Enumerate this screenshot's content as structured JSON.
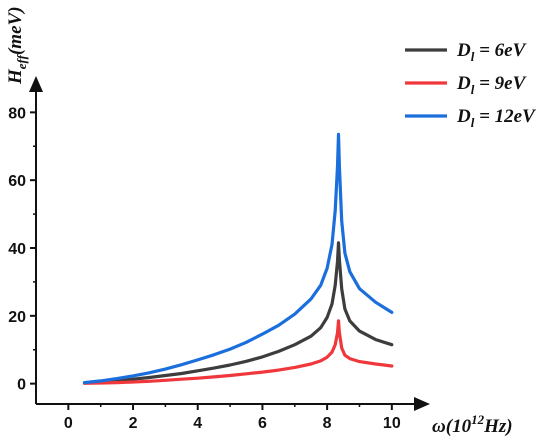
{
  "chart_data": {
    "type": "line",
    "xlabel": {
      "base": "ω(10",
      "sup": "12",
      "rest": "Hz)"
    },
    "ylabel": {
      "base": "H",
      "sub": "eff",
      "rest": "(meV)"
    },
    "xlim": [
      -1,
      10.5
    ],
    "ylim": [
      -6,
      86
    ],
    "x_ticks": [
      0,
      2,
      4,
      6,
      8,
      10
    ],
    "y_ticks": [
      0,
      20,
      40,
      60,
      80
    ],
    "legend_position": "top-right",
    "series": [
      {
        "name": {
          "base": "D",
          "sub": "l",
          "rest": " = 6eV"
        },
        "color": "#3d3d3d",
        "x": [
          0.5,
          1,
          1.5,
          2,
          2.5,
          3,
          3.5,
          4,
          4.5,
          5,
          5.5,
          6,
          6.5,
          7,
          7.5,
          7.8,
          8.0,
          8.15,
          8.25,
          8.32,
          8.35,
          8.38,
          8.45,
          8.55,
          8.7,
          9.0,
          9.5,
          10
        ],
        "y": [
          0.2,
          0.5,
          0.8,
          1.3,
          1.8,
          2.4,
          3.0,
          3.8,
          4.6,
          5.5,
          6.6,
          7.9,
          9.5,
          11.5,
          14.0,
          16.5,
          19.5,
          23.5,
          29.0,
          36.0,
          41.5,
          36.5,
          28.0,
          22.0,
          18.5,
          15.5,
          13.0,
          11.5
        ]
      },
      {
        "name": {
          "base": "D",
          "sub": "l",
          "rest": " = 9eV"
        },
        "color": "#f0383c",
        "x": [
          0.5,
          1,
          1.5,
          2,
          2.5,
          3,
          3.5,
          4,
          4.5,
          5,
          5.5,
          6,
          6.5,
          7,
          7.5,
          7.8,
          8.0,
          8.15,
          8.25,
          8.32,
          8.35,
          8.38,
          8.45,
          8.55,
          8.7,
          9.0,
          9.5,
          10
        ],
        "y": [
          0.1,
          0.2,
          0.3,
          0.5,
          0.7,
          1.0,
          1.3,
          1.6,
          2.0,
          2.4,
          2.9,
          3.4,
          4.0,
          4.8,
          5.8,
          6.7,
          7.8,
          9.3,
          11.5,
          15.0,
          18.5,
          15.0,
          10.5,
          8.4,
          7.4,
          6.5,
          5.8,
          5.2
        ]
      },
      {
        "name": {
          "base": "D",
          "sub": "l",
          "rest": " = 12eV"
        },
        "color": "#1a6fdc",
        "x": [
          0.5,
          1,
          1.5,
          2,
          2.5,
          3,
          3.5,
          4,
          4.5,
          5,
          5.5,
          6,
          6.5,
          7,
          7.5,
          7.8,
          8.0,
          8.15,
          8.25,
          8.32,
          8.35,
          8.38,
          8.45,
          8.55,
          8.7,
          9.0,
          9.5,
          10
        ],
        "y": [
          0.3,
          0.8,
          1.5,
          2.3,
          3.2,
          4.3,
          5.6,
          7.0,
          8.5,
          10.2,
          12.2,
          14.6,
          17.2,
          20.5,
          25.0,
          29.0,
          34.0,
          41.0,
          51.0,
          64.0,
          73.5,
          64.0,
          48.0,
          38.5,
          33.0,
          28.0,
          24.0,
          21.0
        ]
      }
    ]
  }
}
